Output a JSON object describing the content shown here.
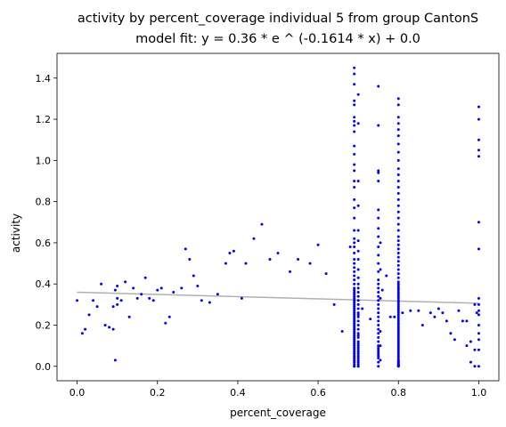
{
  "chart_data": {
    "type": "scatter",
    "title": "activity by percent_coverage individual 5 from group CantonS",
    "subtitle": "model fit: y = 0.36 * e ^ (-0.1614 * x) + 0.0",
    "xlabel": "percent_coverage",
    "ylabel": "activity",
    "xlim": [
      -0.05,
      1.05
    ],
    "ylim": [
      -0.07,
      1.52
    ],
    "xticks": [
      "0.0",
      "0.2",
      "0.4",
      "0.6",
      "0.8",
      "1.0"
    ],
    "yticks": [
      "0.0",
      "0.2",
      "0.4",
      "0.6",
      "0.8",
      "1.0",
      "1.2",
      "1.4"
    ],
    "grid": false,
    "colors": {
      "points": "#0000ff",
      "fit": "#b0b0b0"
    },
    "fit_line": {
      "a": 0.36,
      "b": -0.1614,
      "c": 0.0,
      "x": [
        0.0,
        1.0
      ]
    },
    "series": [
      {
        "x": [
          0.0,
          0.013,
          0.02,
          0.03,
          0.04,
          0.05,
          0.06,
          0.07,
          0.08,
          0.09,
          0.09,
          0.095,
          0.095,
          0.1,
          0.1,
          0.1,
          0.11,
          0.12,
          0.13,
          0.14,
          0.15,
          0.16,
          0.17,
          0.18,
          0.19,
          0.2,
          0.21,
          0.22,
          0.23,
          0.24,
          0.26,
          0.27,
          0.28,
          0.29,
          0.3,
          0.31,
          0.33,
          0.35,
          0.37,
          0.38,
          0.39,
          0.41,
          0.42,
          0.44,
          0.46,
          0.48,
          0.5,
          0.53,
          0.55,
          0.58,
          0.6,
          0.62,
          0.64,
          0.66,
          0.68,
          0.71,
          0.73,
          0.76,
          0.77,
          0.78,
          0.79,
          0.81,
          0.83,
          0.85,
          0.86,
          0.88,
          0.89,
          0.9,
          0.91,
          0.92,
          0.93,
          0.94,
          0.95,
          0.96,
          0.97,
          0.97,
          0.98,
          0.98,
          0.99,
          0.99,
          0.99,
          0.995
        ],
        "y": [
          0.32,
          0.16,
          0.18,
          0.25,
          0.32,
          0.29,
          0.4,
          0.2,
          0.19,
          0.18,
          0.29,
          0.03,
          0.37,
          0.33,
          0.3,
          0.39,
          0.32,
          0.41,
          0.24,
          0.38,
          0.33,
          0.35,
          0.43,
          0.33,
          0.32,
          0.37,
          0.38,
          0.21,
          0.24,
          0.36,
          0.38,
          0.57,
          0.52,
          0.44,
          0.39,
          0.32,
          0.31,
          0.35,
          0.5,
          0.55,
          0.56,
          0.33,
          0.5,
          0.62,
          0.69,
          0.52,
          0.55,
          0.46,
          0.52,
          0.5,
          0.59,
          0.45,
          0.3,
          0.17,
          0.58,
          0.28,
          0.23,
          0.37,
          0.44,
          0.24,
          0.24,
          0.26,
          0.27,
          0.27,
          0.2,
          0.26,
          0.24,
          0.28,
          0.26,
          0.22,
          0.16,
          0.13,
          0.27,
          0.22,
          0.1,
          0.22,
          0.12,
          0.02,
          0.3,
          0.0,
          0.08,
          0.26
        ]
      },
      {
        "x": [
          0.69,
          0.69,
          0.69,
          0.69,
          0.69,
          0.69,
          0.69,
          0.69,
          0.69,
          0.69,
          0.69,
          0.69,
          0.69,
          0.69,
          0.69,
          0.69,
          0.69,
          0.69,
          0.69,
          0.69,
          0.69,
          0.69,
          0.69,
          0.69,
          0.69,
          0.69,
          0.69,
          0.69,
          0.69,
          0.69,
          0.69,
          0.69,
          0.69,
          0.69,
          0.69,
          0.69,
          0.69,
          0.69,
          0.69,
          0.69,
          0.69,
          0.69,
          0.69,
          0.69,
          0.69,
          0.69,
          0.69,
          0.69,
          0.69,
          0.69,
          0.69,
          0.69,
          0.69,
          0.69,
          0.69,
          0.69,
          0.69,
          0.69,
          0.69,
          0.69,
          0.69,
          0.69,
          0.69,
          0.69,
          0.69,
          0.69,
          0.69,
          0.69,
          0.69,
          0.69,
          0.7,
          0.7,
          0.7,
          0.7,
          0.7,
          0.7,
          0.7,
          0.7,
          0.7,
          0.7,
          0.7,
          0.7,
          0.7,
          0.7,
          0.7,
          0.7,
          0.7,
          0.7,
          0.7,
          0.7,
          0.7,
          0.7,
          0.7,
          0.7,
          0.7,
          0.7,
          0.7,
          0.7,
          0.7,
          0.7,
          0.7,
          0.7,
          0.7,
          0.7,
          0.7,
          0.7,
          0.7,
          0.7,
          0.7,
          0.7
        ],
        "y": [
          1.45,
          1.42,
          1.37,
          1.29,
          1.27,
          1.21,
          1.19,
          1.17,
          1.14,
          1.07,
          1.03,
          0.98,
          0.95,
          0.9,
          0.87,
          0.81,
          0.77,
          0.72,
          0.66,
          0.62,
          0.6,
          0.58,
          0.55,
          0.52,
          0.5,
          0.48,
          0.46,
          0.44,
          0.42,
          0.4,
          0.38,
          0.37,
          0.36,
          0.35,
          0.34,
          0.33,
          0.32,
          0.31,
          0.3,
          0.29,
          0.28,
          0.27,
          0.26,
          0.25,
          0.24,
          0.23,
          0.22,
          0.21,
          0.2,
          0.19,
          0.18,
          0.17,
          0.16,
          0.15,
          0.14,
          0.13,
          0.12,
          0.11,
          0.1,
          0.09,
          0.08,
          0.07,
          0.06,
          0.05,
          0.04,
          0.03,
          0.02,
          0.01,
          0.0,
          0.0,
          1.32,
          1.18,
          0.9,
          0.78,
          0.66,
          0.61,
          0.56,
          0.52,
          0.47,
          0.43,
          0.4,
          0.38,
          0.36,
          0.34,
          0.32,
          0.3,
          0.28,
          0.26,
          0.25,
          0.24,
          0.22,
          0.2,
          0.18,
          0.16,
          0.15,
          0.14,
          0.12,
          0.11,
          0.1,
          0.09,
          0.08,
          0.07,
          0.06,
          0.05,
          0.04,
          0.03,
          0.02,
          0.01,
          0.0,
          0.0
        ]
      },
      {
        "x": [
          0.75,
          0.75,
          0.75,
          0.75,
          0.75,
          0.75,
          0.75,
          0.75,
          0.75,
          0.75,
          0.75,
          0.75,
          0.75,
          0.75,
          0.75,
          0.75,
          0.75,
          0.75,
          0.75,
          0.75,
          0.75,
          0.75,
          0.75,
          0.75,
          0.75,
          0.75,
          0.75,
          0.75,
          0.75,
          0.75,
          0.75,
          0.75,
          0.75,
          0.75,
          0.75,
          0.75,
          0.75,
          0.75,
          0.755,
          0.755,
          0.755,
          0.755,
          0.755,
          0.755
        ],
        "y": [
          1.36,
          1.17,
          0.95,
          0.94,
          0.9,
          0.76,
          0.72,
          0.67,
          0.63,
          0.58,
          0.54,
          0.5,
          0.46,
          0.42,
          0.4,
          0.38,
          0.36,
          0.34,
          0.32,
          0.3,
          0.28,
          0.26,
          0.24,
          0.22,
          0.2,
          0.18,
          0.16,
          0.14,
          0.12,
          0.1,
          0.09,
          0.08,
          0.07,
          0.06,
          0.05,
          0.04,
          0.02,
          0.0,
          0.6,
          0.47,
          0.33,
          0.17,
          0.1,
          0.03
        ]
      },
      {
        "x": [
          0.8,
          0.8,
          0.8,
          0.8,
          0.8,
          0.8,
          0.8,
          0.8,
          0.8,
          0.8,
          0.8,
          0.8,
          0.8,
          0.8,
          0.8,
          0.8,
          0.8,
          0.8,
          0.8,
          0.8,
          0.8,
          0.8,
          0.8,
          0.8,
          0.8,
          0.8,
          0.8,
          0.8,
          0.8,
          0.8,
          0.8,
          0.8,
          0.8,
          0.8,
          0.8,
          0.8,
          0.8,
          0.8,
          0.8,
          0.8,
          0.8,
          0.8,
          0.8,
          0.8,
          0.8,
          0.8,
          0.8,
          0.8,
          0.8,
          0.8,
          0.8,
          0.8,
          0.8,
          0.8,
          0.8,
          0.8,
          0.8,
          0.8,
          0.8,
          0.8,
          0.8,
          0.8,
          0.8,
          0.8,
          0.8,
          0.8,
          0.8,
          0.8,
          0.8,
          0.8,
          0.8,
          0.8,
          0.8,
          0.8,
          0.8,
          0.8,
          0.8,
          0.8,
          0.8,
          0.8
        ],
        "y": [
          1.3,
          1.27,
          1.21,
          1.18,
          1.15,
          1.12,
          1.08,
          1.04,
          1.0,
          0.96,
          0.93,
          0.9,
          0.87,
          0.84,
          0.81,
          0.78,
          0.75,
          0.72,
          0.69,
          0.66,
          0.63,
          0.61,
          0.59,
          0.57,
          0.55,
          0.53,
          0.51,
          0.49,
          0.47,
          0.45,
          0.43,
          0.41,
          0.4,
          0.39,
          0.38,
          0.37,
          0.36,
          0.35,
          0.34,
          0.33,
          0.32,
          0.31,
          0.3,
          0.29,
          0.28,
          0.27,
          0.26,
          0.25,
          0.24,
          0.23,
          0.22,
          0.21,
          0.2,
          0.19,
          0.18,
          0.17,
          0.16,
          0.15,
          0.14,
          0.13,
          0.12,
          0.11,
          0.1,
          0.09,
          0.08,
          0.07,
          0.06,
          0.05,
          0.04,
          0.03,
          0.025,
          0.02,
          0.015,
          0.01,
          0.008,
          0.005,
          0.003,
          0.002,
          0.001,
          0.0
        ]
      },
      {
        "x": [
          1.0,
          1.0,
          1.0,
          1.0,
          1.0,
          1.0,
          1.0,
          1.0,
          1.0,
          1.0,
          1.0,
          1.0,
          1.0,
          1.0,
          1.0,
          1.0
        ],
        "y": [
          1.26,
          1.2,
          1.1,
          1.05,
          1.02,
          0.7,
          0.57,
          0.33,
          0.3,
          0.27,
          0.25,
          0.2,
          0.16,
          0.13,
          0.08,
          0.0
        ]
      }
    ]
  }
}
